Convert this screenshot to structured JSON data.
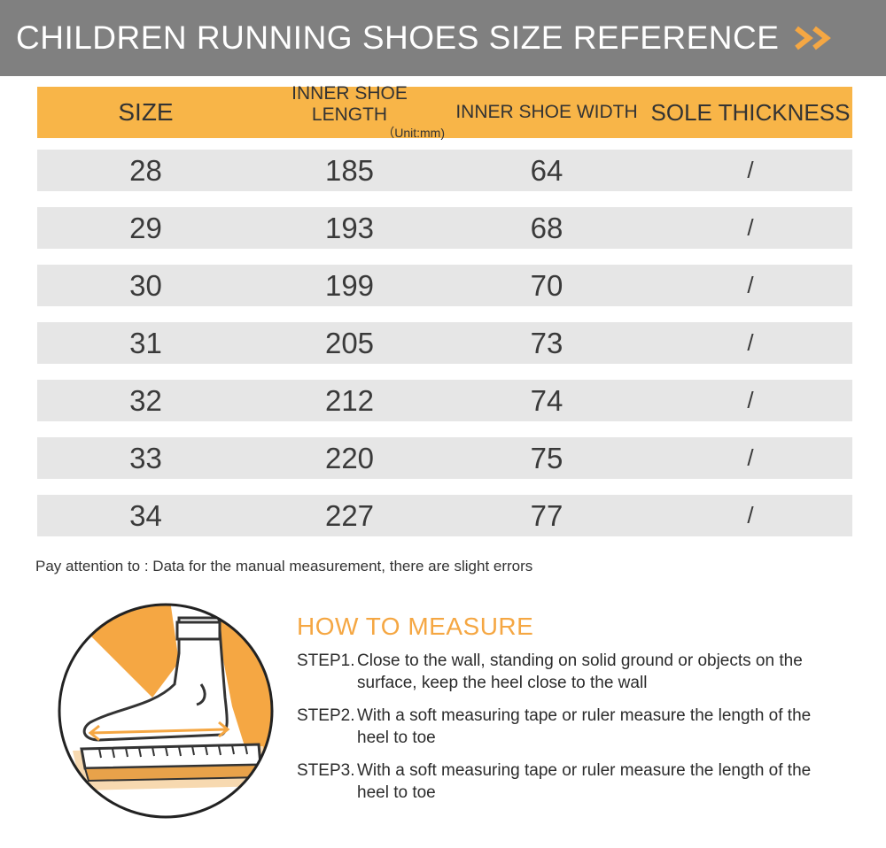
{
  "header": {
    "title": "CHILDREN RUNNING SHOES SIZE REFERENCE",
    "arrow_icon": "double-chevron-right-icon",
    "colors": {
      "bar": "#808080",
      "arrow": "#f5a743"
    }
  },
  "table": {
    "colors": {
      "header_bg": "#f8b548",
      "row_bg": "#e6e6e6"
    },
    "columns": {
      "size": "SIZE",
      "length": "INNER SHOE LENGTH",
      "length_unit": "（Unit:mm)",
      "width": "INNER SHOE WIDTH",
      "sole": "SOLE THICKNESS"
    },
    "rows": [
      {
        "size": "28",
        "length": "185",
        "width": "64",
        "sole": "/"
      },
      {
        "size": "29",
        "length": "193",
        "width": "68",
        "sole": "/"
      },
      {
        "size": "30",
        "length": "199",
        "width": "70",
        "sole": "/"
      },
      {
        "size": "31",
        "length": "205",
        "width": "73",
        "sole": "/"
      },
      {
        "size": "32",
        "length": "212",
        "width": "74",
        "sole": "/"
      },
      {
        "size": "33",
        "length": "220",
        "width": "75",
        "sole": "/"
      },
      {
        "size": "34",
        "length": "227",
        "width": "77",
        "sole": "/"
      }
    ]
  },
  "note": "Pay attention to : Data for the manual measurement, there are slight errors",
  "illustration": {
    "icon": "foot-measure-illustration-icon"
  },
  "how_to_measure": {
    "title": "HOW TO MEASURE",
    "steps": [
      {
        "label": "STEP1.",
        "text": "Close to the wall, standing on solid ground or objects on the surface, keep the heel close to the wall"
      },
      {
        "label": "STEP2.",
        "text": "With a soft measuring tape or ruler measure the length of the heel to toe"
      },
      {
        "label": "STEP3.",
        "text": "With a soft measuring tape or ruler measure the length of the heel to toe"
      }
    ]
  }
}
